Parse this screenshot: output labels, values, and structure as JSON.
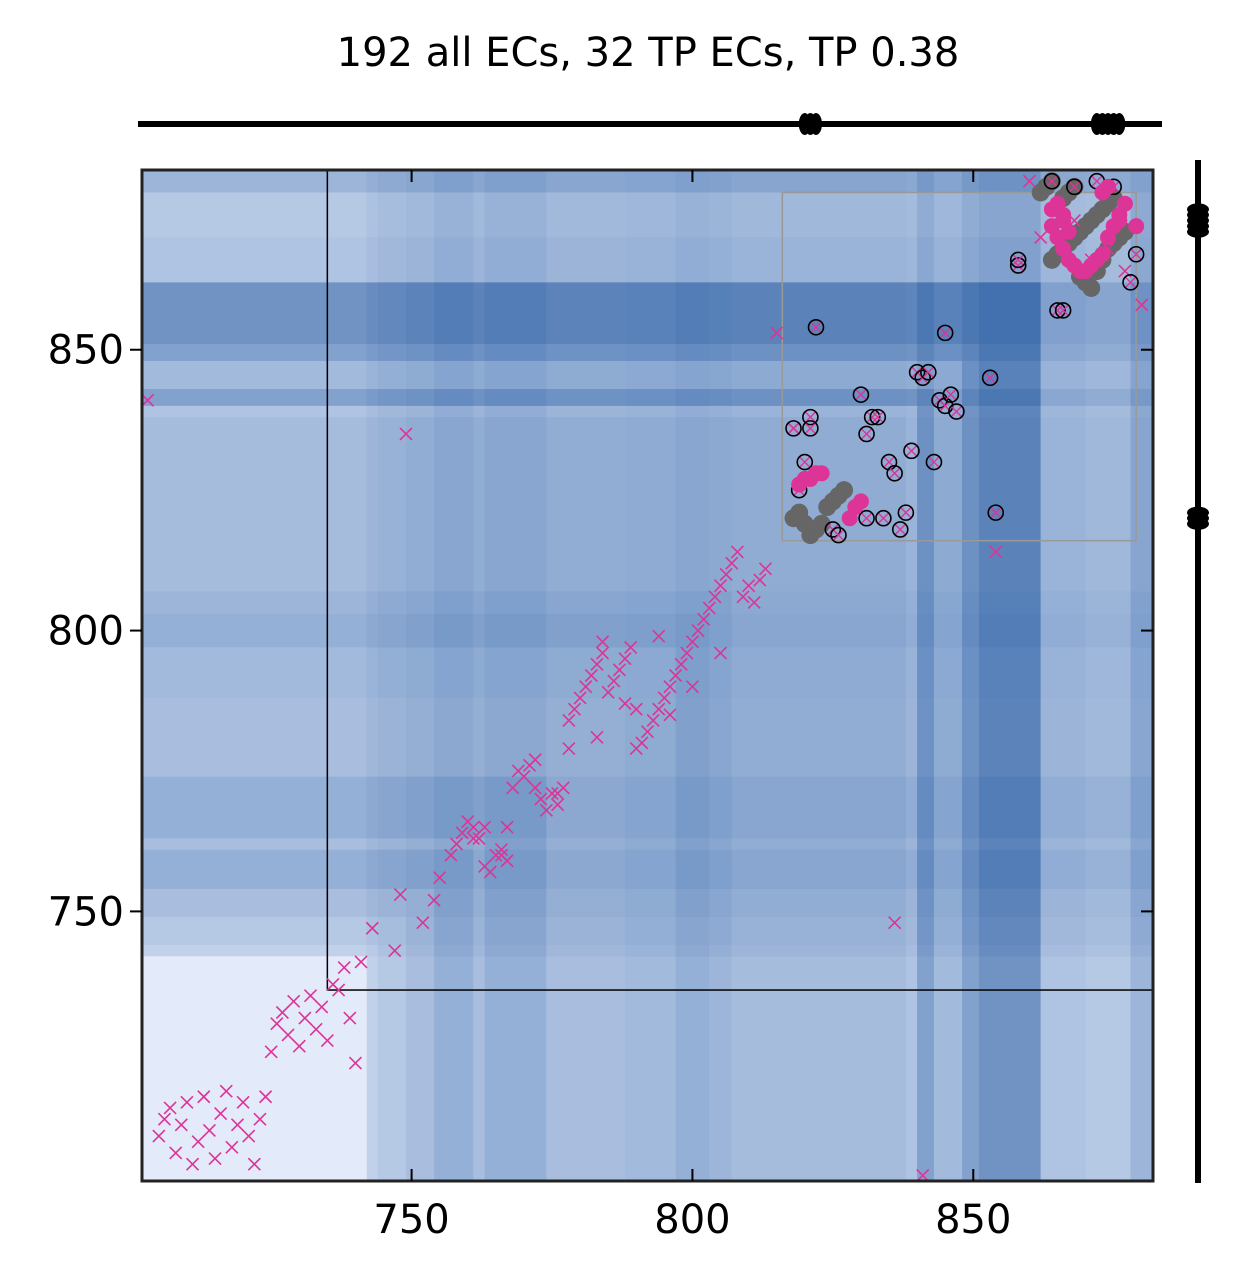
{
  "chart_data": {
    "type": "scatter",
    "title": "192 all ECs, 32 TP ECs, TP 0.38",
    "xlim": [
      702,
      882
    ],
    "ylim": [
      702,
      882
    ],
    "x_ticks": [
      750,
      800,
      850
    ],
    "y_ticks": [
      750,
      800,
      850
    ],
    "x_tick_labels": [
      "750",
      "800",
      "850"
    ],
    "y_tick_labels": [
      "750",
      "800",
      "850"
    ],
    "grid": false,
    "colors": {
      "predicted_marker": "#dd3497",
      "true_contact": "#666666",
      "tp_marker": "#dd3497",
      "highlight_box": "#999999",
      "domain_box": "#000000"
    },
    "background_bands": [
      {
        "from": 702,
        "to": 742,
        "level": 0.05
      },
      {
        "from": 742,
        "to": 744,
        "level": 0.2
      },
      {
        "from": 744,
        "to": 749,
        "level": 0.3
      },
      {
        "from": 749,
        "to": 754,
        "level": 0.4
      },
      {
        "from": 754,
        "to": 761,
        "level": 0.55
      },
      {
        "from": 761,
        "to": 763,
        "level": 0.4
      },
      {
        "from": 763,
        "to": 774,
        "level": 0.55
      },
      {
        "from": 774,
        "to": 788,
        "level": 0.4
      },
      {
        "from": 788,
        "to": 797,
        "level": 0.45
      },
      {
        "from": 797,
        "to": 803,
        "level": 0.55
      },
      {
        "from": 803,
        "to": 807,
        "level": 0.5
      },
      {
        "from": 807,
        "to": 838,
        "level": 0.42
      },
      {
        "from": 838,
        "to": 840,
        "level": 0.35
      },
      {
        "from": 840,
        "to": 843,
        "level": 0.7
      },
      {
        "from": 843,
        "to": 848,
        "level": 0.45
      },
      {
        "from": 848,
        "to": 851,
        "level": 0.7
      },
      {
        "from": 851,
        "to": 862,
        "level": 0.85
      },
      {
        "from": 862,
        "to": 870,
        "level": 0.35
      },
      {
        "from": 870,
        "to": 878,
        "level": 0.3
      },
      {
        "from": 878,
        "to": 882,
        "level": 0.5
      }
    ],
    "domain_box": {
      "x0": 735,
      "x1": 882,
      "y0": 736,
      "y1": 882
    },
    "highlight_box": {
      "x0": 816,
      "x1": 879,
      "y0": 816,
      "y1": 878
    },
    "top_strip_markers": [
      820,
      821,
      822,
      872,
      873,
      874,
      875,
      876
    ],
    "right_strip_markers": [
      819,
      820,
      821,
      871,
      872,
      873,
      874,
      875
    ],
    "true_contacts": [
      [
        818,
        820
      ],
      [
        819,
        821
      ],
      [
        820,
        819
      ],
      [
        821,
        817
      ],
      [
        822,
        818
      ],
      [
        823,
        819
      ],
      [
        824,
        822
      ],
      [
        825,
        823
      ],
      [
        826,
        824
      ],
      [
        827,
        825
      ],
      [
        864,
        866
      ],
      [
        865,
        867
      ],
      [
        866,
        868
      ],
      [
        867,
        869
      ],
      [
        868,
        870
      ],
      [
        869,
        871
      ],
      [
        870,
        872
      ],
      [
        871,
        873
      ],
      [
        872,
        874
      ],
      [
        873,
        875
      ],
      [
        874,
        876
      ],
      [
        875,
        877
      ],
      [
        866,
        877
      ],
      [
        867,
        878
      ],
      [
        868,
        879
      ],
      [
        869,
        863
      ],
      [
        870,
        862
      ],
      [
        871,
        861
      ],
      [
        872,
        864
      ],
      [
        873,
        866
      ],
      [
        874,
        868
      ],
      [
        875,
        869
      ],
      [
        876,
        870
      ],
      [
        877,
        871
      ],
      [
        862,
        878
      ],
      [
        863,
        879
      ],
      [
        864,
        880
      ]
    ],
    "predicted_contacts": [
      [
        705,
        710
      ],
      [
        706,
        713
      ],
      [
        707,
        715
      ],
      [
        708,
        707
      ],
      [
        709,
        712
      ],
      [
        710,
        716
      ],
      [
        711,
        705
      ],
      [
        712,
        709
      ],
      [
        713,
        717
      ],
      [
        714,
        711
      ],
      [
        715,
        706
      ],
      [
        716,
        714
      ],
      [
        717,
        718
      ],
      [
        718,
        708
      ],
      [
        719,
        712
      ],
      [
        720,
        716
      ],
      [
        721,
        710
      ],
      [
        722,
        705
      ],
      [
        723,
        713
      ],
      [
        724,
        717
      ],
      [
        725,
        725
      ],
      [
        726,
        730
      ],
      [
        727,
        732
      ],
      [
        728,
        728
      ],
      [
        729,
        734
      ],
      [
        730,
        726
      ],
      [
        731,
        731
      ],
      [
        732,
        735
      ],
      [
        733,
        729
      ],
      [
        734,
        733
      ],
      [
        735,
        727
      ],
      [
        736,
        737
      ],
      [
        737,
        736
      ],
      [
        738,
        740
      ],
      [
        739,
        731
      ],
      [
        740,
        723
      ],
      [
        741,
        741
      ],
      [
        743,
        747
      ],
      [
        747,
        743
      ],
      [
        748,
        753
      ],
      [
        749,
        835
      ],
      [
        752,
        748
      ],
      [
        754,
        752
      ],
      [
        755,
        756
      ],
      [
        757,
        760
      ],
      [
        758,
        762
      ],
      [
        759,
        764
      ],
      [
        760,
        766
      ],
      [
        761,
        765
      ],
      [
        762,
        763
      ],
      [
        763,
        758
      ],
      [
        764,
        757
      ],
      [
        765,
        760
      ],
      [
        766,
        761
      ],
      [
        767,
        759
      ],
      [
        768,
        772
      ],
      [
        769,
        775
      ],
      [
        770,
        774
      ],
      [
        771,
        776
      ],
      [
        772,
        777
      ],
      [
        773,
        770
      ],
      [
        774,
        768
      ],
      [
        775,
        771
      ],
      [
        776,
        769
      ],
      [
        777,
        772
      ],
      [
        778,
        784
      ],
      [
        779,
        786
      ],
      [
        780,
        788
      ],
      [
        781,
        790
      ],
      [
        782,
        792
      ],
      [
        783,
        794
      ],
      [
        784,
        796
      ],
      [
        785,
        789
      ],
      [
        786,
        791
      ],
      [
        787,
        793
      ],
      [
        788,
        795
      ],
      [
        789,
        797
      ],
      [
        790,
        786
      ],
      [
        791,
        780
      ],
      [
        792,
        782
      ],
      [
        793,
        784
      ],
      [
        794,
        786
      ],
      [
        795,
        788
      ],
      [
        796,
        790
      ],
      [
        797,
        792
      ],
      [
        798,
        794
      ],
      [
        799,
        796
      ],
      [
        800,
        798
      ],
      [
        801,
        800
      ],
      [
        802,
        802
      ],
      [
        803,
        804
      ],
      [
        804,
        806
      ],
      [
        805,
        808
      ],
      [
        806,
        810
      ],
      [
        807,
        812
      ],
      [
        808,
        814
      ],
      [
        809,
        806
      ],
      [
        810,
        808
      ],
      [
        811,
        805
      ],
      [
        812,
        809
      ],
      [
        813,
        811
      ],
      [
        815,
        853
      ],
      [
        818,
        836
      ],
      [
        836,
        748
      ],
      [
        841,
        703
      ],
      [
        854,
        814
      ],
      [
        860,
        880
      ],
      [
        862,
        870
      ],
      [
        865,
        875
      ],
      [
        868,
        873
      ],
      [
        871,
        866
      ],
      [
        874,
        868
      ],
      [
        877,
        864
      ],
      [
        880,
        858
      ],
      [
        703,
        841
      ],
      [
        763,
        765
      ],
      [
        766,
        760
      ],
      [
        776,
        771
      ],
      [
        784,
        798
      ],
      [
        790,
        779
      ],
      [
        796,
        785
      ],
      [
        800,
        790
      ],
      [
        805,
        796
      ],
      [
        794,
        799
      ],
      [
        788,
        787
      ],
      [
        783,
        781
      ],
      [
        778,
        779
      ],
      [
        772,
        772
      ],
      [
        767,
        765
      ],
      [
        761,
        763
      ]
    ],
    "tp_contacts": [
      [
        819,
        826
      ],
      [
        820,
        827
      ],
      [
        821,
        827
      ],
      [
        822,
        828
      ],
      [
        823,
        828
      ],
      [
        828,
        820
      ],
      [
        829,
        822
      ],
      [
        830,
        823
      ],
      [
        864,
        872
      ],
      [
        865,
        870
      ],
      [
        866,
        868
      ],
      [
        867,
        866
      ],
      [
        868,
        865
      ],
      [
        869,
        864
      ],
      [
        870,
        864
      ],
      [
        871,
        865
      ],
      [
        872,
        866
      ],
      [
        873,
        867
      ],
      [
        874,
        870
      ],
      [
        875,
        872
      ],
      [
        876,
        874
      ],
      [
        877,
        876
      ],
      [
        864,
        875
      ],
      [
        865,
        876
      ],
      [
        866,
        874
      ],
      [
        870,
        864
      ],
      [
        873,
        878
      ],
      [
        874,
        879
      ],
      [
        876,
        873
      ],
      [
        879,
        872
      ],
      [
        866,
        873
      ],
      [
        867,
        871
      ]
    ],
    "open_circles": [
      [
        818,
        836
      ],
      [
        819,
        825
      ],
      [
        820,
        830
      ],
      [
        821,
        838
      ],
      [
        821,
        836
      ],
      [
        822,
        854
      ],
      [
        825,
        818
      ],
      [
        826,
        817
      ],
      [
        830,
        842
      ],
      [
        831,
        835
      ],
      [
        831,
        820
      ],
      [
        832,
        838
      ],
      [
        833,
        838
      ],
      [
        834,
        820
      ],
      [
        835,
        830
      ],
      [
        836,
        828
      ],
      [
        837,
        818
      ],
      [
        838,
        821
      ],
      [
        839,
        832
      ],
      [
        840,
        846
      ],
      [
        841,
        845
      ],
      [
        842,
        846
      ],
      [
        843,
        830
      ],
      [
        844,
        841
      ],
      [
        845,
        840
      ],
      [
        846,
        842
      ],
      [
        847,
        839
      ],
      [
        845,
        853
      ],
      [
        853,
        845
      ],
      [
        854,
        821
      ],
      [
        858,
        865
      ],
      [
        858,
        866
      ],
      [
        865,
        857
      ],
      [
        866,
        857
      ],
      [
        868,
        879
      ],
      [
        872,
        880
      ],
      [
        875,
        879
      ],
      [
        878,
        862
      ],
      [
        879,
        867
      ],
      [
        864,
        880
      ]
    ]
  }
}
